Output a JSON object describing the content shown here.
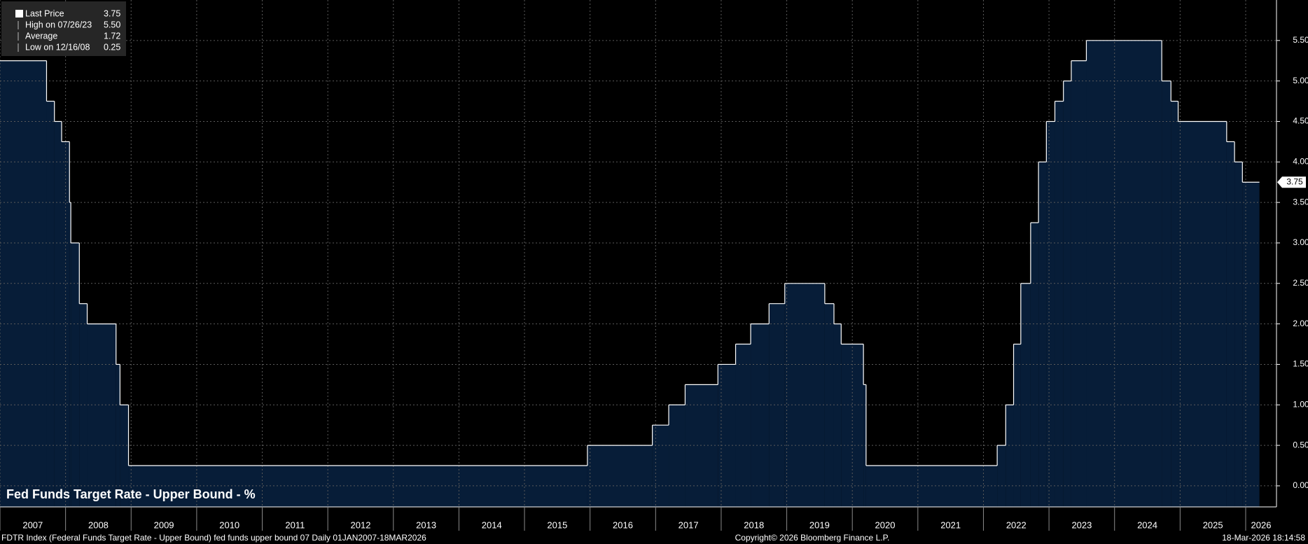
{
  "chart_data": {
    "type": "step-area",
    "title": "Fed Funds Target Rate - Upper Bound - %",
    "x": [
      2007.0,
      2007.71,
      2007.83,
      2007.94,
      2008.06,
      2008.08,
      2008.21,
      2008.33,
      2008.77,
      2008.83,
      2008.96,
      2015.96,
      2016.95,
      2017.2,
      2017.45,
      2017.95,
      2018.22,
      2018.45,
      2018.73,
      2018.97,
      2019.58,
      2019.72,
      2019.83,
      2020.17,
      2020.21,
      2022.21,
      2022.34,
      2022.46,
      2022.57,
      2022.72,
      2022.84,
      2022.96,
      2023.09,
      2023.22,
      2023.34,
      2023.57,
      2024.72,
      2024.86,
      2024.97,
      2025.71,
      2025.83,
      2025.95,
      2026.21
    ],
    "values": [
      5.25,
      4.75,
      4.5,
      4.25,
      3.5,
      3.0,
      2.25,
      2.0,
      1.5,
      1.0,
      0.25,
      0.5,
      0.75,
      1.0,
      1.25,
      1.5,
      1.75,
      2.0,
      2.25,
      2.5,
      2.25,
      2.0,
      1.75,
      1.25,
      0.25,
      0.5,
      1.0,
      1.75,
      2.5,
      3.25,
      4.0,
      4.5,
      4.75,
      5.0,
      5.25,
      5.5,
      5.0,
      4.75,
      4.5,
      4.25,
      4.0,
      3.75,
      3.75
    ],
    "color": "#ffffff",
    "fill": "#071d38",
    "xlim": [
      2007.0,
      2026.47
    ],
    "xticks": [
      2007,
      2008,
      2009,
      2010,
      2011,
      2012,
      2013,
      2014,
      2015,
      2016,
      2017,
      2018,
      2019,
      2020,
      2021,
      2022,
      2023,
      2024,
      2025,
      2026
    ],
    "ylim": [
      -0.26,
      6.0
    ],
    "yticks": [
      {
        "value": 0,
        "label": "0.00"
      },
      {
        "value": 0.5,
        "label": "0.50"
      },
      {
        "value": 1.0,
        "label": "1.00"
      },
      {
        "value": 1.5,
        "label": "1.50"
      },
      {
        "value": 2.0,
        "label": "2.00"
      },
      {
        "value": 2.5,
        "label": "2.50"
      },
      {
        "value": 3.0,
        "label": "3.00"
      },
      {
        "value": 3.5,
        "label": "3.50"
      },
      {
        "value": 4.0,
        "label": "4.00"
      },
      {
        "value": 4.5,
        "label": "4.50"
      },
      {
        "value": 5.0,
        "label": "5.00"
      },
      {
        "value": 5.5,
        "label": "5.50"
      }
    ],
    "grid": true,
    "legend": [
      {
        "label": "Last Price",
        "value": "3.75"
      },
      {
        "label": "High on 07/26/23",
        "value": "5.50"
      },
      {
        "label": "Average",
        "value": "1.72"
      },
      {
        "label": "Low on 12/16/08",
        "value": "0.25"
      }
    ],
    "footer": {
      "left": "FDTR Index (Federal Funds Target Rate - Upper Bound) fed funds upper bound 07 Daily 01JAN2007-18MAR2026",
      "center": "Copyright© 2026 Bloomberg Finance L.P.",
      "right": "18-Mar-2026 18:14:58"
    }
  }
}
